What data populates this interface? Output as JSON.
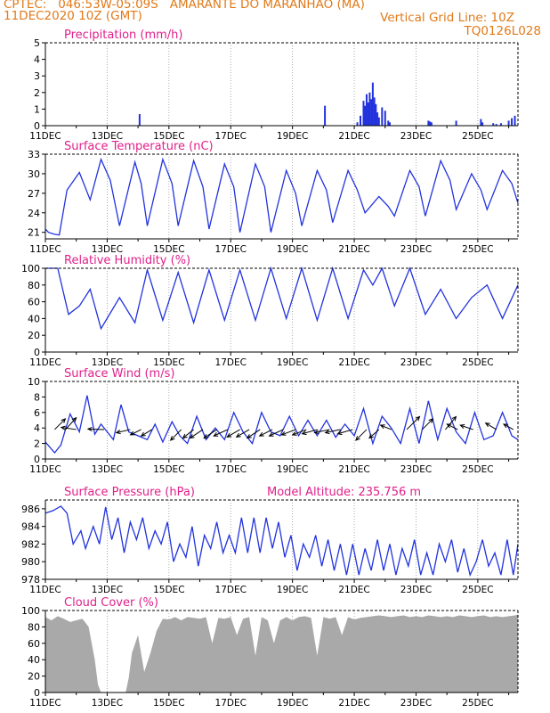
{
  "header": {
    "line1_left": "CPTEC:   046:53W-05:09S   AMARANTE DO MARANHAO (MA)",
    "line2_left": "11DEC2020 10Z (GMT)",
    "line2_right": "Vertical Grid Line: 10Z",
    "line3_right": "TQ0126L028"
  },
  "colors": {
    "header": "#e07a1a",
    "title": "#e0208a",
    "series": "#2233dd",
    "cloud": "#a9a9a9",
    "axis": "#000000"
  },
  "chart_data": [
    {
      "type": "bar",
      "title": "Precipitation (mm/h)",
      "ylim": [
        0,
        5
      ],
      "yticks": [
        0,
        1,
        2,
        3,
        4,
        5
      ],
      "xlim": [
        0,
        15.3
      ],
      "xtick_labels": [
        "11DEC",
        "13DEC",
        "15DEC",
        "17DEC",
        "19DEC",
        "21DEC",
        "23DEC",
        "25DEC"
      ],
      "x": [
        3.05,
        9.05,
        10.1,
        10.2,
        10.3,
        10.35,
        10.4,
        10.45,
        10.5,
        10.55,
        10.6,
        10.65,
        10.7,
        10.75,
        10.8,
        10.9,
        11.0,
        11.1,
        11.15,
        12.4,
        12.45,
        12.5,
        13.3,
        14.1,
        14.15,
        14.5,
        14.6,
        14.75,
        15.0,
        15.1,
        15.2
      ],
      "values": [
        0.7,
        1.2,
        0.2,
        0.6,
        1.5,
        1.2,
        1.9,
        1.4,
        2.0,
        1.6,
        2.6,
        1.7,
        1.3,
        0.8,
        0.5,
        1.1,
        0.9,
        0.3,
        0.2,
        0.3,
        0.25,
        0.2,
        0.3,
        0.4,
        0.2,
        0.15,
        0.1,
        0.15,
        0.3,
        0.45,
        0.6
      ]
    },
    {
      "type": "line",
      "title": "Surface Temperature (nC)",
      "ylim": [
        20,
        33
      ],
      "yticks": [
        21,
        24,
        27,
        30,
        33
      ],
      "xlim": [
        0,
        15.3
      ],
      "xtick_labels": [
        "11DEC",
        "13DEC",
        "15DEC",
        "17DEC",
        "19DEC",
        "21DEC",
        "23DEC",
        "25DEC"
      ],
      "x": [
        0,
        0.1,
        0.3,
        0.45,
        0.7,
        1.1,
        1.45,
        1.8,
        2.1,
        2.4,
        2.9,
        3.1,
        3.3,
        3.8,
        4.1,
        4.3,
        4.8,
        5.1,
        5.3,
        5.8,
        6.1,
        6.3,
        6.8,
        7.1,
        7.3,
        7.8,
        8.1,
        8.3,
        8.8,
        9.1,
        9.3,
        9.8,
        10.1,
        10.35,
        10.8,
        11.1,
        11.3,
        11.8,
        12.1,
        12.3,
        12.8,
        13.1,
        13.3,
        13.8,
        14.1,
        14.3,
        14.8,
        15.1,
        15.3
      ],
      "values": [
        21.5,
        21.0,
        20.7,
        20.6,
        27.5,
        30.2,
        26.0,
        32.2,
        29.0,
        22.0,
        31.8,
        28.5,
        22.0,
        32.2,
        28.5,
        22.0,
        32.0,
        28.0,
        21.5,
        31.5,
        28.0,
        21.0,
        31.5,
        28.0,
        21.0,
        30.5,
        27.0,
        22.0,
        30.5,
        27.5,
        22.5,
        30.5,
        27.5,
        24.0,
        26.5,
        25.0,
        23.5,
        30.5,
        28.0,
        23.5,
        32.0,
        29.0,
        24.5,
        30.0,
        27.5,
        24.5,
        30.5,
        28.5,
        25.5
      ]
    },
    {
      "type": "line",
      "title": "Relative Humidity (%)",
      "ylim": [
        0,
        100
      ],
      "yticks": [
        0,
        20,
        40,
        60,
        80,
        100
      ],
      "xlim": [
        0,
        15.3
      ],
      "xtick_labels": [
        "11DEC",
        "13DEC",
        "15DEC",
        "17DEC",
        "19DEC",
        "21DEC",
        "23DEC",
        "25DEC"
      ],
      "x": [
        0,
        0.4,
        0.75,
        1.1,
        1.45,
        1.8,
        2.4,
        2.9,
        3.3,
        3.8,
        4.3,
        4.8,
        5.3,
        5.8,
        6.3,
        6.8,
        7.3,
        7.8,
        8.3,
        8.8,
        9.3,
        9.8,
        10.3,
        10.6,
        10.9,
        11.3,
        11.8,
        12.3,
        12.8,
        13.3,
        13.8,
        14.3,
        14.8,
        15.3
      ],
      "values": [
        100,
        100,
        45,
        55,
        75,
        28,
        65,
        35,
        98,
        38,
        95,
        35,
        98,
        38,
        98,
        38,
        100,
        40,
        100,
        38,
        100,
        40,
        98,
        80,
        100,
        55,
        100,
        45,
        75,
        40,
        65,
        80,
        40,
        80
      ]
    },
    {
      "type": "line",
      "title": "Surface Wind (m/s)",
      "ylim": [
        0,
        10
      ],
      "yticks": [
        0,
        2,
        4,
        6,
        8,
        10
      ],
      "xlim": [
        0,
        15.3
      ],
      "xtick_labels": [
        "11DEC",
        "13DEC",
        "15DEC",
        "17DEC",
        "19DEC",
        "21DEC",
        "23DEC",
        "25DEC"
      ],
      "x": [
        0,
        0.3,
        0.5,
        0.8,
        1.1,
        1.35,
        1.6,
        1.8,
        2.2,
        2.45,
        2.7,
        3.0,
        3.3,
        3.55,
        3.8,
        4.1,
        4.35,
        4.6,
        4.9,
        5.2,
        5.5,
        5.8,
        6.1,
        6.4,
        6.7,
        7.0,
        7.3,
        7.6,
        7.9,
        8.2,
        8.5,
        8.8,
        9.1,
        9.4,
        9.7,
        10.0,
        10.3,
        10.6,
        10.9,
        11.2,
        11.5,
        11.8,
        12.1,
        12.4,
        12.7,
        13.0,
        13.3,
        13.6,
        13.9,
        14.2,
        14.5,
        14.8,
        15.1,
        15.3
      ],
      "values": [
        2.2,
        0.8,
        1.8,
        5.8,
        3.5,
        8.2,
        3.2,
        4.5,
        2.5,
        7.0,
        3.5,
        3.0,
        2.5,
        4.5,
        2.2,
        4.8,
        3.0,
        2.0,
        5.5,
        2.5,
        4.0,
        2.5,
        6.0,
        3.5,
        2.0,
        6.0,
        3.5,
        3.0,
        5.5,
        3.0,
        5.0,
        3.0,
        5.0,
        2.8,
        4.5,
        3.0,
        6.5,
        2.0,
        5.5,
        4.0,
        2.0,
        6.5,
        2.0,
        7.5,
        2.5,
        6.5,
        3.5,
        2.0,
        6.0,
        2.5,
        3.0,
        6.0,
        3.0,
        2.5
      ],
      "wind_vectors": [
        {
          "x": 0.3,
          "u": 1.0,
          "v": 1.0
        },
        {
          "x": 0.65,
          "u": 1.0,
          "v": 1.1
        },
        {
          "x": 1.0,
          "u": -1.4,
          "v": 0.2
        },
        {
          "x": 1.9,
          "u": -1.5,
          "v": 0.05
        },
        {
          "x": 2.75,
          "u": -1.3,
          "v": -0.3
        },
        {
          "x": 3.1,
          "u": -1.0,
          "v": -0.5
        },
        {
          "x": 3.45,
          "u": -1.0,
          "v": -0.6
        },
        {
          "x": 4.4,
          "u": -1.0,
          "v": -1.0
        },
        {
          "x": 4.8,
          "u": -1.0,
          "v": -0.8
        },
        {
          "x": 5.1,
          "u": -1.2,
          "v": -0.8
        },
        {
          "x": 5.55,
          "u": -1.2,
          "v": -0.8
        },
        {
          "x": 5.9,
          "u": -1.3,
          "v": -0.6
        },
        {
          "x": 6.3,
          "u": -1.2,
          "v": -0.7
        },
        {
          "x": 6.6,
          "u": -1.2,
          "v": -0.7
        },
        {
          "x": 6.95,
          "u": -1.2,
          "v": -0.8
        },
        {
          "x": 7.35,
          "u": -1.2,
          "v": -0.6
        },
        {
          "x": 7.7,
          "u": -1.3,
          "v": -0.6
        },
        {
          "x": 8.1,
          "u": -1.3,
          "v": -0.5
        },
        {
          "x": 8.45,
          "u": -1.3,
          "v": -0.5
        },
        {
          "x": 8.8,
          "u": -1.4,
          "v": -0.4
        },
        {
          "x": 9.2,
          "u": -1.4,
          "v": -0.3
        },
        {
          "x": 9.55,
          "u": -1.4,
          "v": -0.3
        },
        {
          "x": 9.95,
          "u": -1.4,
          "v": -0.4
        },
        {
          "x": 10.4,
          "u": -1.0,
          "v": -1.0
        },
        {
          "x": 10.8,
          "u": -0.9,
          "v": -0.8
        },
        {
          "x": 11.2,
          "u": -1.0,
          "v": 0.4
        },
        {
          "x": 11.7,
          "u": 1.2,
          "v": 1.2
        },
        {
          "x": 12.2,
          "u": 1.0,
          "v": 1.0
        },
        {
          "x": 12.95,
          "u": 1.0,
          "v": 1.2
        },
        {
          "x": 13.35,
          "u": -1.0,
          "v": 0.5
        },
        {
          "x": 13.85,
          "u": -1.2,
          "v": 0.4
        },
        {
          "x": 14.6,
          "u": -1.0,
          "v": 0.6
        },
        {
          "x": 15.15,
          "u": -0.9,
          "v": 0.5
        }
      ]
    },
    {
      "type": "line",
      "title": "Surface Pressure (hPa)",
      "annotation": "Model Altitude: 235.756  m",
      "ylim": [
        978,
        987
      ],
      "yticks": [
        978,
        980,
        982,
        984,
        986
      ],
      "xlim": [
        0,
        15.3
      ],
      "xtick_labels": [
        "11DEC",
        "13DEC",
        "15DEC",
        "17DEC",
        "19DEC",
        "21DEC",
        "23DEC",
        "25DEC"
      ],
      "x": [
        0,
        0.25,
        0.5,
        0.7,
        0.9,
        1.15,
        1.3,
        1.55,
        1.75,
        1.95,
        2.15,
        2.35,
        2.55,
        2.75,
        2.95,
        3.15,
        3.35,
        3.55,
        3.75,
        3.95,
        4.15,
        4.35,
        4.55,
        4.75,
        4.95,
        5.15,
        5.35,
        5.55,
        5.75,
        5.95,
        6.15,
        6.35,
        6.55,
        6.75,
        6.95,
        7.15,
        7.35,
        7.55,
        7.75,
        7.95,
        8.15,
        8.35,
        8.55,
        8.75,
        8.95,
        9.15,
        9.35,
        9.55,
        9.75,
        9.95,
        10.15,
        10.35,
        10.55,
        10.75,
        10.95,
        11.15,
        11.35,
        11.55,
        11.75,
        11.95,
        12.15,
        12.35,
        12.55,
        12.75,
        12.95,
        13.15,
        13.35,
        13.55,
        13.75,
        13.95,
        14.15,
        14.35,
        14.55,
        14.75,
        14.95,
        15.15,
        15.3
      ],
      "values": [
        985.5,
        985.8,
        986.3,
        985.5,
        982.0,
        983.5,
        981.5,
        984.0,
        982.0,
        986.2,
        982.5,
        985.0,
        981.0,
        984.5,
        982.5,
        985.0,
        981.5,
        983.5,
        982.0,
        984.5,
        980.0,
        982.0,
        980.5,
        984.0,
        979.5,
        983.0,
        981.5,
        984.5,
        981.0,
        983.0,
        981.0,
        985.0,
        981.0,
        985.0,
        981.0,
        985.0,
        981.5,
        984.5,
        980.5,
        983.0,
        979.0,
        982.0,
        980.5,
        983.0,
        979.5,
        982.5,
        979.0,
        982.0,
        978.5,
        982.0,
        978.5,
        981.5,
        979.0,
        982.5,
        979.0,
        982.0,
        978.5,
        981.5,
        979.5,
        982.5,
        978.5,
        981.0,
        978.5,
        982.0,
        980.0,
        982.5,
        978.8,
        981.5,
        978.5,
        980.0,
        982.5,
        979.5,
        981.0,
        978.5,
        982.5,
        978.5,
        982.0
      ]
    },
    {
      "type": "area",
      "title": "Cloud Cover (%)",
      "ylim": [
        0,
        100
      ],
      "yticks": [
        0,
        20,
        40,
        60,
        80,
        100
      ],
      "xlim": [
        0,
        15.3
      ],
      "xtick_labels": [
        "11DEC",
        "13DEC",
        "15DEC",
        "17DEC",
        "19DEC",
        "21DEC",
        "23DEC",
        "25DEC"
      ],
      "x": [
        0,
        0.2,
        0.4,
        0.6,
        0.8,
        1.0,
        1.2,
        1.4,
        1.6,
        1.7,
        1.8,
        2.6,
        2.7,
        2.8,
        3.0,
        3.2,
        3.4,
        3.6,
        3.8,
        4.0,
        4.2,
        4.4,
        4.6,
        4.8,
        5.0,
        5.2,
        5.4,
        5.6,
        5.8,
        6.0,
        6.2,
        6.4,
        6.6,
        6.8,
        7.0,
        7.2,
        7.4,
        7.6,
        7.8,
        8.0,
        8.2,
        8.4,
        8.6,
        8.8,
        9.0,
        9.2,
        9.4,
        9.6,
        9.8,
        10.0,
        10.2,
        10.4,
        10.6,
        10.8,
        11.0,
        11.2,
        11.4,
        11.6,
        11.8,
        12.0,
        12.2,
        12.4,
        12.6,
        12.8,
        13.0,
        13.2,
        13.4,
        13.6,
        13.8,
        14.0,
        14.2,
        14.4,
        14.6,
        14.8,
        15.0,
        15.2,
        15.3
      ],
      "values": [
        92,
        88,
        93,
        90,
        86,
        88,
        90,
        80,
        40,
        10,
        0,
        0,
        18,
        48,
        70,
        25,
        48,
        75,
        90,
        89,
        92,
        88,
        92,
        91,
        90,
        92,
        60,
        91,
        90,
        92,
        70,
        90,
        92,
        45,
        92,
        88,
        60,
        88,
        92,
        88,
        92,
        93,
        91,
        45,
        92,
        90,
        92,
        70,
        92,
        89,
        91,
        92,
        93,
        94,
        93,
        92,
        93,
        94,
        92,
        93,
        92,
        94,
        93,
        92,
        93,
        92,
        94,
        93,
        92,
        93,
        94,
        92,
        93,
        92,
        93,
        94,
        95
      ]
    }
  ]
}
